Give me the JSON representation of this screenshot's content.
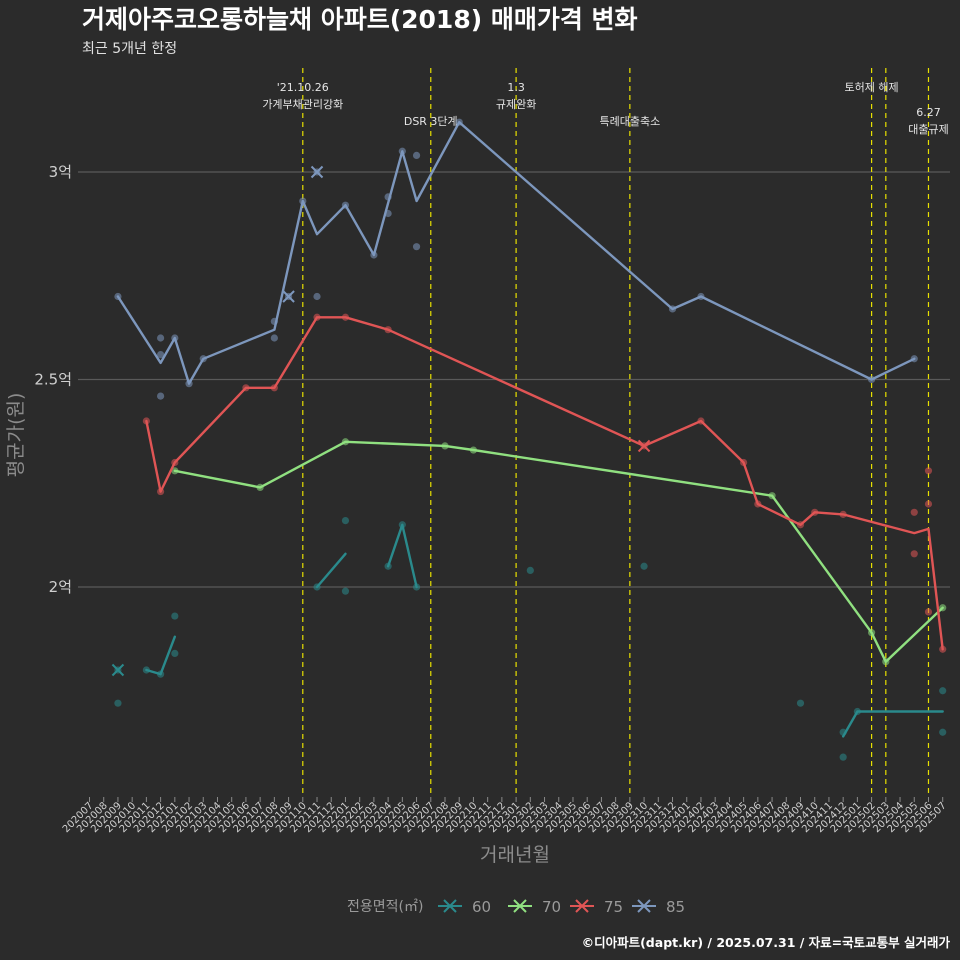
{
  "chart_data": {
    "type": "line",
    "title": "거제아주코오롱하늘채 아파트(2018) 매매가격 변화",
    "subtitle": "최근 5개년 한정",
    "xlabel": "거래년월",
    "ylabel": "평균가(원)",
    "caption": "©디아파트(dapt.kr) / 2025.07.31 / 자료=국토교통부 실거래가",
    "x_categories": [
      "202007",
      "202008",
      "202009",
      "202010",
      "202011",
      "202012",
      "202101",
      "202102",
      "202103",
      "202104",
      "202105",
      "202106",
      "202107",
      "202108",
      "202109",
      "202110",
      "202111",
      "202112",
      "202201",
      "202202",
      "202203",
      "202204",
      "202205",
      "202206",
      "202207",
      "202208",
      "202209",
      "202210",
      "202211",
      "202212",
      "202301",
      "202302",
      "202303",
      "202304",
      "202305",
      "202306",
      "202307",
      "202308",
      "202309",
      "202310",
      "202311",
      "202312",
      "202401",
      "202402",
      "202403",
      "202404",
      "202405",
      "202406",
      "202407",
      "202408",
      "202409",
      "202410",
      "202411",
      "202412",
      "202501",
      "202502",
      "202503",
      "202504",
      "202505",
      "202506",
      "202507"
    ],
    "y_ticks": [
      {
        "value": 2.0,
        "label": "2억"
      },
      {
        "value": 2.5,
        "label": "2.5억"
      },
      {
        "value": 3.0,
        "label": "3억"
      }
    ],
    "ylim": [
      1.5,
      3.2
    ],
    "grid": true,
    "legend": {
      "title": "전용면적(㎡)",
      "position": "bottom"
    },
    "events": [
      {
        "x": "202110",
        "lines": [
          "'21.10.26",
          "가계부채관리강화"
        ],
        "row": 0
      },
      {
        "x": "202207",
        "lines": [
          "DSR 3단계"
        ],
        "row": 1
      },
      {
        "x": "202301",
        "lines": [
          "1.3",
          "규제완화"
        ],
        "row": 0
      },
      {
        "x": "202309",
        "lines": [
          "특례대출축소"
        ],
        "row": 1
      },
      {
        "x": "202502",
        "lines": [
          "토허제 해제"
        ],
        "row": 0
      },
      {
        "x": "202503",
        "lines": [],
        "row": 0
      },
      {
        "x": "202506",
        "lines": [
          "6.27",
          "대출규제"
        ],
        "row": 2
      }
    ],
    "series": [
      {
        "name": "60",
        "color": "#2a8a8c",
        "line_segments": [
          [
            [
              "202009",
              1.8
            ]
          ],
          [
            [
              "202011",
              1.8
            ],
            [
              "202012",
              1.79
            ]
          ],
          [
            [
              "202012",
              1.79
            ],
            [
              "202101",
              1.88
            ]
          ],
          [
            [
              "202111",
              2.0
            ],
            [
              "202201",
              2.08
            ]
          ],
          [
            [
              "202204",
              2.05
            ],
            [
              "202205",
              2.15
            ],
            [
              "202206",
              2.0
            ]
          ],
          [
            [
              "202412",
              1.64
            ],
            [
              "202501",
              1.7
            ],
            [
              "202506",
              1.7
            ],
            [
              "202507",
              1.7
            ]
          ]
        ],
        "points": [
          [
            "202009",
            1.8
          ],
          [
            "202009",
            1.72
          ],
          [
            "202011",
            1.8
          ],
          [
            "202012",
            1.79
          ],
          [
            "202101",
            1.84
          ],
          [
            "202101",
            1.93
          ],
          [
            "202111",
            2.0
          ],
          [
            "202201",
            2.16
          ],
          [
            "202201",
            1.99
          ],
          [
            "202204",
            2.05
          ],
          [
            "202205",
            2.15
          ],
          [
            "202206",
            2.0
          ],
          [
            "202302",
            2.04
          ],
          [
            "202310",
            2.05
          ],
          [
            "202409",
            1.72
          ],
          [
            "202412",
            1.65
          ],
          [
            "202412",
            1.59
          ],
          [
            "202501",
            1.7
          ],
          [
            "202507",
            1.75
          ],
          [
            "202507",
            1.65
          ]
        ],
        "cross_marks": [
          [
            "202009",
            1.8
          ]
        ]
      },
      {
        "name": "70",
        "color": "#90e080",
        "line_segments": [
          [
            [
              "202101",
              2.28
            ],
            [
              "202107",
              2.24
            ],
            [
              "202201",
              2.35
            ],
            [
              "202208",
              2.34
            ],
            [
              "202210",
              2.33
            ],
            [
              "202407",
              2.22
            ],
            [
              "202502",
              1.89
            ],
            [
              "202503",
              1.82
            ],
            [
              "202507",
              1.95
            ]
          ]
        ],
        "points": [
          [
            "202101",
            2.28
          ],
          [
            "202107",
            2.24
          ],
          [
            "202201",
            2.35
          ],
          [
            "202208",
            2.34
          ],
          [
            "202210",
            2.33
          ],
          [
            "202407",
            2.22
          ],
          [
            "202502",
            1.89
          ],
          [
            "202503",
            1.82
          ],
          [
            "202507",
            1.95
          ]
        ],
        "cross_marks": []
      },
      {
        "name": "75",
        "color": "#e05555",
        "line_segments": [
          [
            [
              "202011",
              2.4
            ],
            [
              "202012",
              2.23
            ],
            [
              "202101",
              2.3
            ],
            [
              "202106",
              2.48
            ],
            [
              "202108",
              2.48
            ],
            [
              "202111",
              2.65
            ],
            [
              "202201",
              2.65
            ],
            [
              "202204",
              2.62
            ],
            [
              "202310",
              2.34
            ],
            [
              "202402",
              2.4
            ],
            [
              "202405",
              2.3
            ],
            [
              "202406",
              2.2
            ],
            [
              "202409",
              2.15
            ],
            [
              "202410",
              2.18
            ],
            [
              "202412",
              2.175
            ],
            [
              "202505",
              2.13
            ],
            [
              "202506",
              2.14
            ],
            [
              "202507",
              1.85
            ]
          ]
        ],
        "points": [
          [
            "202011",
            2.4
          ],
          [
            "202012",
            2.23
          ],
          [
            "202101",
            2.3
          ],
          [
            "202106",
            2.48
          ],
          [
            "202108",
            2.48
          ],
          [
            "202111",
            2.65
          ],
          [
            "202201",
            2.65
          ],
          [
            "202204",
            2.62
          ],
          [
            "202310",
            2.34
          ],
          [
            "202402",
            2.4
          ],
          [
            "202405",
            2.3
          ],
          [
            "202406",
            2.2
          ],
          [
            "202409",
            2.15
          ],
          [
            "202410",
            2.18
          ],
          [
            "202412",
            2.175
          ],
          [
            "202505",
            2.18
          ],
          [
            "202505",
            2.08
          ],
          [
            "202506",
            2.28
          ],
          [
            "202506",
            2.2
          ],
          [
            "202506",
            1.94
          ],
          [
            "202507",
            1.85
          ]
        ],
        "cross_marks": [
          [
            "202310",
            2.34
          ]
        ]
      },
      {
        "name": "85",
        "color": "#7d97bd",
        "line_segments": [
          [
            [
              "202009",
              2.7
            ],
            [
              "202012",
              2.54
            ],
            [
              "202101",
              2.6
            ],
            [
              "202102",
              2.49
            ],
            [
              "202103",
              2.55
            ],
            [
              "202108",
              2.62
            ],
            [
              "202110",
              2.93
            ],
            [
              "202111",
              2.85
            ],
            [
              "202201",
              2.92
            ],
            [
              "202203",
              2.8
            ],
            [
              "202205",
              3.05
            ],
            [
              "202206",
              2.93
            ],
            [
              "202209",
              3.12
            ],
            [
              "202312",
              2.67
            ],
            [
              "202402",
              2.7
            ],
            [
              "202502",
              2.5
            ],
            [
              "202505",
              2.55
            ]
          ]
        ],
        "points": [
          [
            "202009",
            2.7
          ],
          [
            "202012",
            2.6
          ],
          [
            "202012",
            2.56
          ],
          [
            "202012",
            2.46
          ],
          [
            "202101",
            2.6
          ],
          [
            "202102",
            2.49
          ],
          [
            "202103",
            2.55
          ],
          [
            "202108",
            2.64
          ],
          [
            "202108",
            2.6
          ],
          [
            "202109",
            2.7
          ],
          [
            "202110",
            2.93
          ],
          [
            "202111",
            3.0
          ],
          [
            "202111",
            2.7
          ],
          [
            "202201",
            2.92
          ],
          [
            "202203",
            2.8
          ],
          [
            "202204",
            2.94
          ],
          [
            "202204",
            2.9
          ],
          [
            "202205",
            3.05
          ],
          [
            "202206",
            3.04
          ],
          [
            "202206",
            2.82
          ],
          [
            "202209",
            3.12
          ],
          [
            "202312",
            2.67
          ],
          [
            "202402",
            2.7
          ],
          [
            "202502",
            2.5
          ],
          [
            "202505",
            2.55
          ]
        ],
        "cross_marks": [
          [
            "202109",
            2.7
          ],
          [
            "202111",
            3.0
          ]
        ]
      }
    ]
  }
}
